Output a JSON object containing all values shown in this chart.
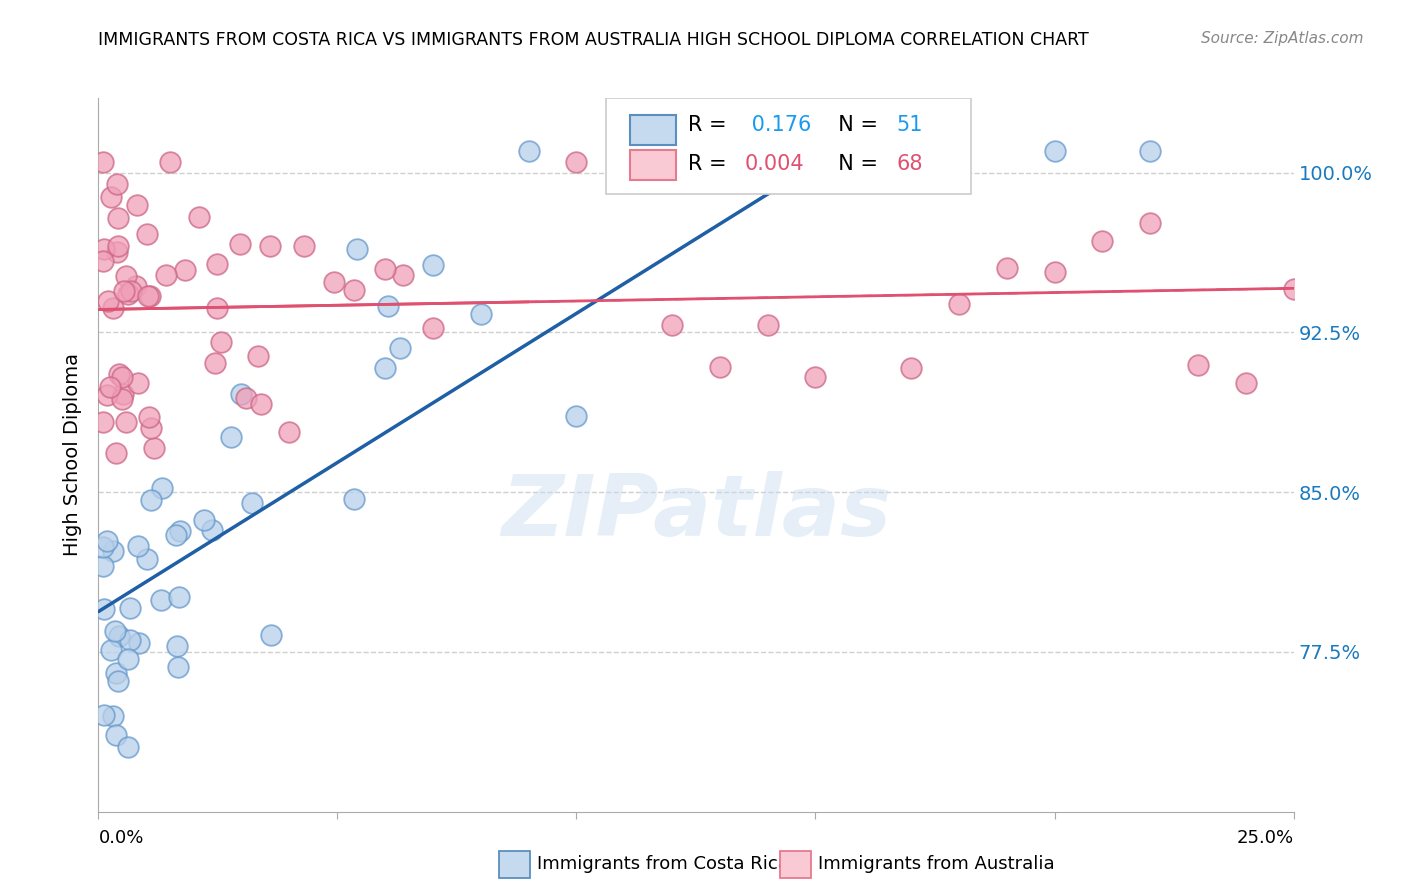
{
  "title": "IMMIGRANTS FROM COSTA RICA VS IMMIGRANTS FROM AUSTRALIA HIGH SCHOOL DIPLOMA CORRELATION CHART",
  "source": "Source: ZipAtlas.com",
  "ylabel": "High School Diploma",
  "ytick_labels": [
    "100.0%",
    "92.5%",
    "85.0%",
    "77.5%"
  ],
  "ytick_values": [
    1.0,
    0.925,
    0.85,
    0.775
  ],
  "xlim": [
    0.0,
    0.25
  ],
  "ylim": [
    0.7,
    1.035
  ],
  "watermark": "ZIPatlas",
  "blue_line_color": "#1f5fa6",
  "pink_line_color": "#e05070",
  "blue_scatter_fill": "#b8d0ea",
  "blue_scatter_edge": "#6699cc",
  "pink_scatter_fill": "#f0a0b8",
  "pink_scatter_edge": "#cc6688",
  "grid_color": "#d0d0d0",
  "background_color": "#ffffff",
  "right_label_color": "#1a7abf",
  "legend_blue_fill": "#c5d9ef",
  "legend_blue_edge": "#5a8fc0",
  "legend_pink_fill": "#f9c9d4",
  "legend_pink_edge": "#e87a90"
}
